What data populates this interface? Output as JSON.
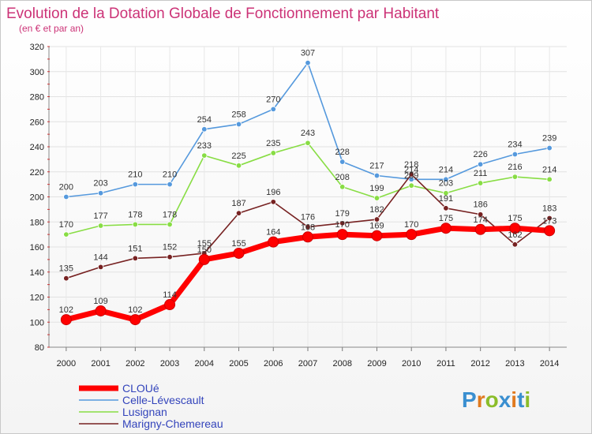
{
  "chart_data": {
    "type": "line",
    "title": "Evolution de la Dotation Globale de Fonctionnement par Habitant",
    "subtitle": "(en € et par an)",
    "xlabel": "",
    "ylabel": "",
    "ylim": [
      80,
      320
    ],
    "yticks": [
      80,
      100,
      120,
      140,
      160,
      180,
      200,
      220,
      240,
      260,
      280,
      300,
      320
    ],
    "grid": true,
    "legend_position": "bottom-left",
    "categories": [
      "2000",
      "2001",
      "2002",
      "2003",
      "2004",
      "2005",
      "2006",
      "2007",
      "2008",
      "2009",
      "2010",
      "2011",
      "2012",
      "2013",
      "2014"
    ],
    "series": [
      {
        "name": "CLOUé",
        "color": "#ff0000",
        "values": [
          102,
          109,
          102,
          114,
          150,
          155,
          164,
          168,
          170,
          169,
          170,
          175,
          174,
          175,
          173
        ]
      },
      {
        "name": "Celle-Lévescault",
        "color": "#5599dd",
        "values": [
          200,
          203,
          210,
          210,
          254,
          258,
          270,
          307,
          228,
          217,
          214,
          214,
          226,
          234,
          239
        ]
      },
      {
        "name": "Lusignan",
        "color": "#88dd44",
        "values": [
          170,
          177,
          178,
          178,
          233,
          225,
          235,
          243,
          208,
          199,
          209,
          203,
          211,
          216,
          214
        ]
      },
      {
        "name": "Marigny-Chemereau",
        "color": "#772222",
        "values": [
          135,
          144,
          151,
          152,
          155,
          187,
          196,
          176,
          179,
          182,
          218,
          191,
          186,
          162,
          183
        ]
      }
    ]
  },
  "legend": {
    "items": [
      {
        "label": "CLOUé",
        "color": "#ff0000"
      },
      {
        "label": "Celle-Lévescault",
        "color": "#5599dd"
      },
      {
        "label": "Lusignan",
        "color": "#88dd44"
      },
      {
        "label": "Marigny-Chemereau",
        "color": "#772222"
      }
    ]
  },
  "branding": {
    "logo_text": "Proxiti"
  }
}
